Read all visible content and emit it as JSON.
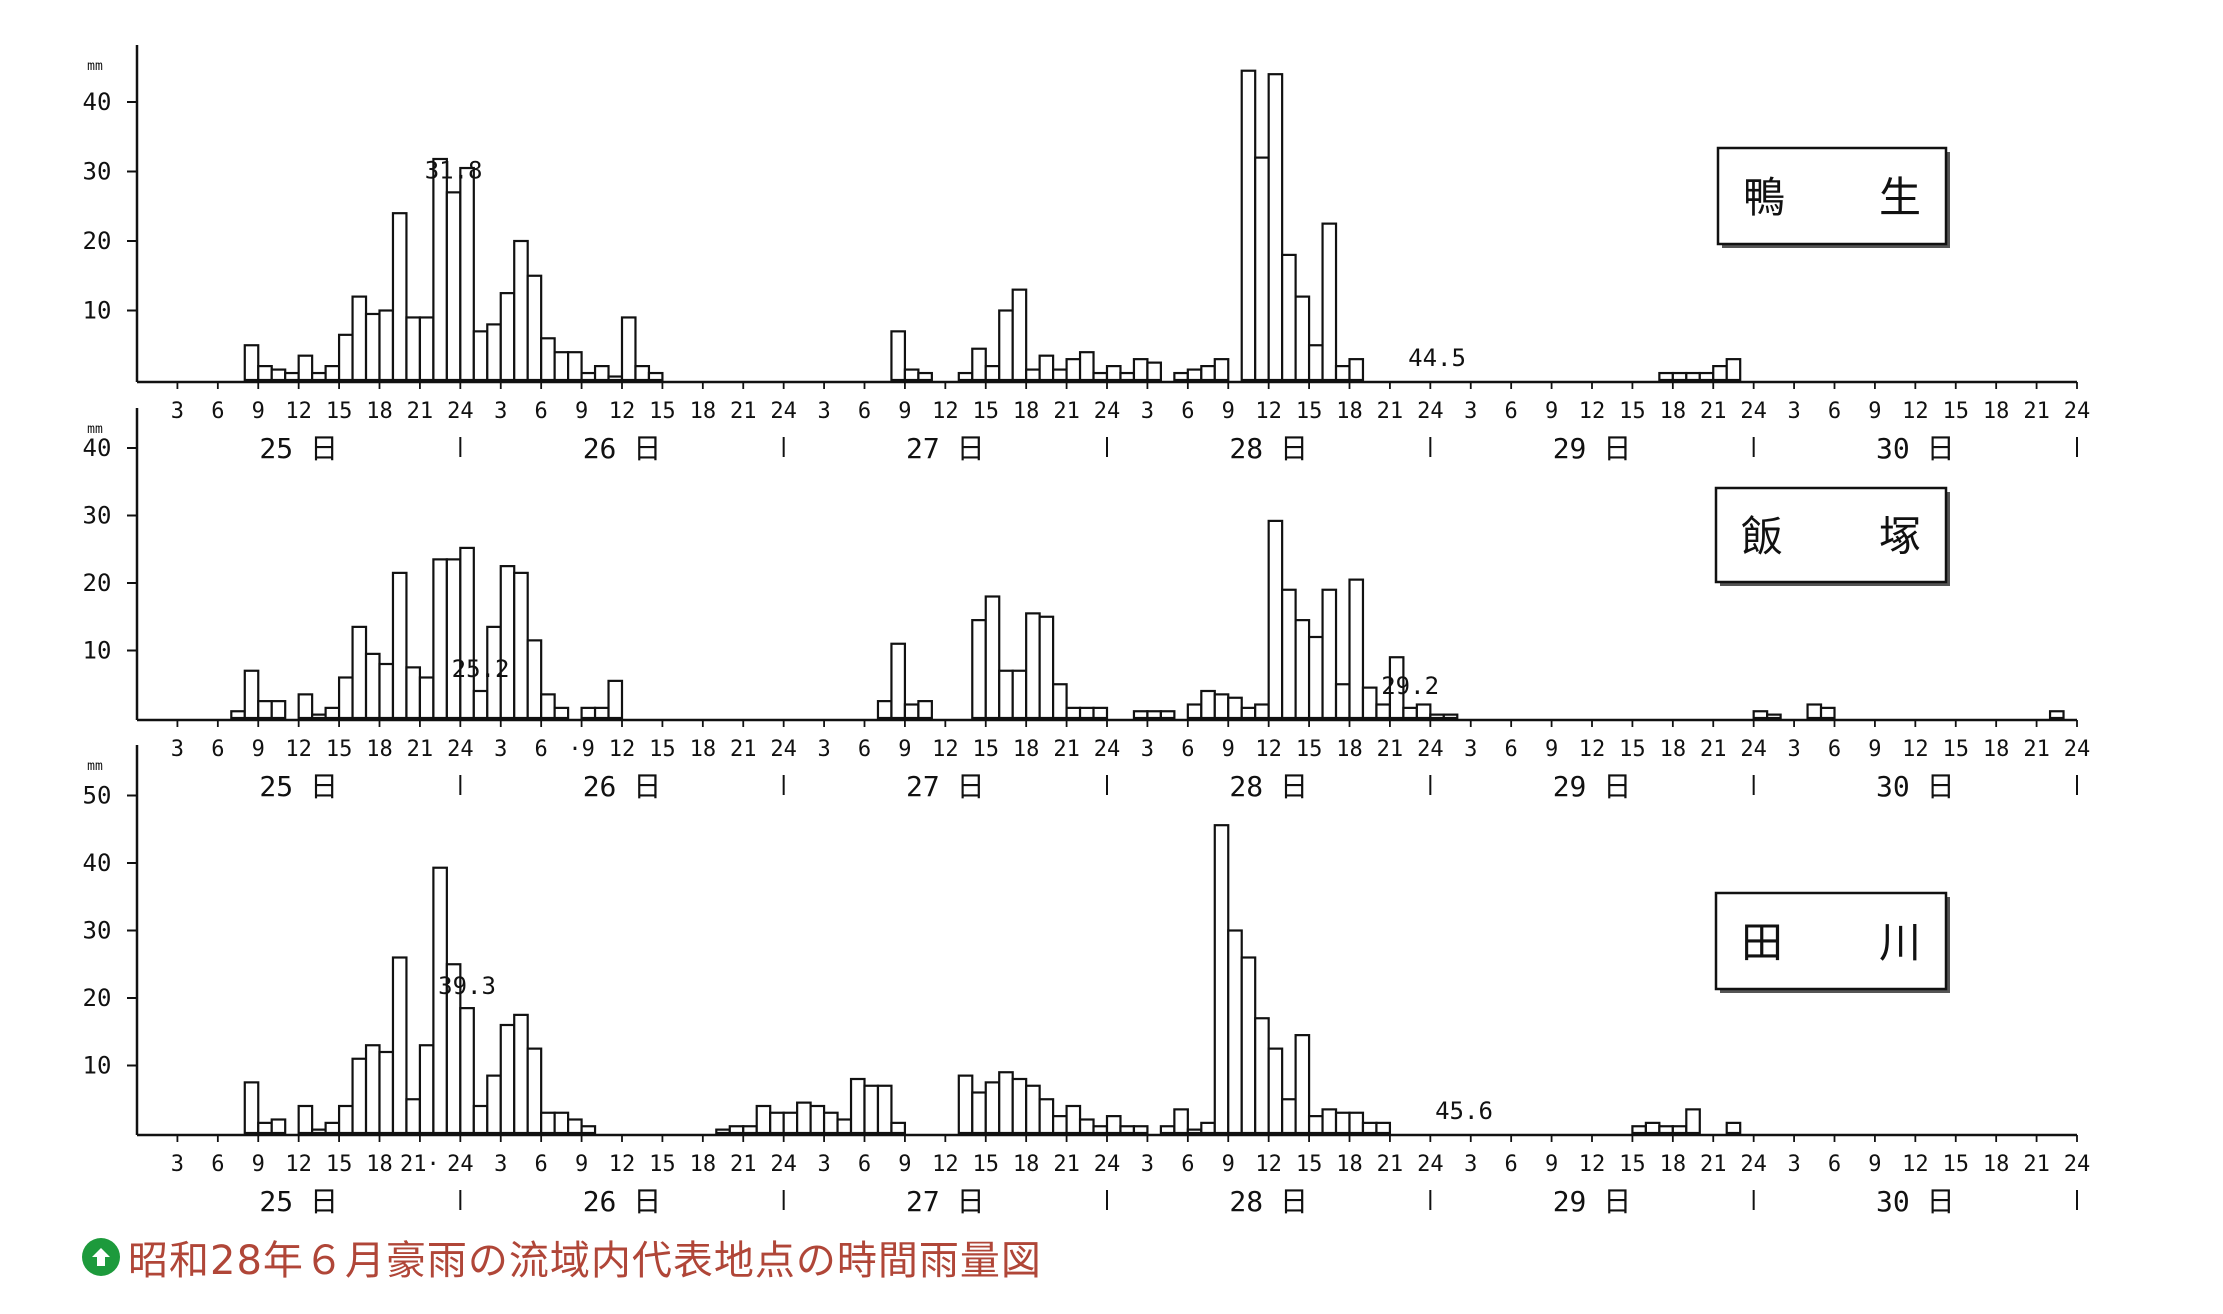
{
  "caption": {
    "text": "昭和28年６月豪雨の流域内代表地点の時間雨量図",
    "icon": "up-arrow-circle-icon",
    "icon_color": "#1d9a3c",
    "text_color": "#b04638"
  },
  "chart_data": [
    {
      "type": "bar",
      "station_label": "鴨 生",
      "yunit": "mm",
      "yticks": [
        10,
        20,
        30,
        40
      ],
      "ylim": [
        0,
        48
      ],
      "x_tick_labels": [
        "3",
        "6",
        "9",
        "12",
        "15",
        "18",
        "21",
        "24",
        "3",
        "6",
        "9",
        "12",
        "15",
        "18",
        "21",
        "24",
        "3",
        "6",
        "9",
        "12",
        "15",
        "18",
        "21",
        "24",
        "3",
        "6",
        "9",
        "12",
        "15",
        "18",
        "21",
        "24",
        "3",
        "6",
        "9",
        "12",
        "15",
        "18",
        "21",
        "24",
        "3",
        "6",
        "9",
        "12",
        "15",
        "18",
        "21",
        "24"
      ],
      "day_labels": [
        "25 日",
        "26 日",
        "27 日",
        "28 日",
        "29 日",
        "30 日"
      ],
      "peak_annotations": [
        {
          "hour": 23,
          "label": "31.8"
        },
        {
          "hour": 96,
          "label": "44.5"
        }
      ],
      "values": [
        0,
        0,
        0,
        0,
        0,
        0,
        0,
        0,
        5,
        2,
        1.5,
        1,
        3.5,
        1,
        2,
        6.5,
        12,
        9.5,
        10,
        24,
        9,
        9,
        31.8,
        27,
        30.5,
        7,
        8,
        12.5,
        20,
        15,
        6,
        4,
        4,
        1,
        2,
        0.5,
        9,
        2,
        1,
        0,
        0,
        0,
        0,
        0,
        0,
        0,
        0,
        0,
        0,
        0,
        0,
        0,
        0,
        0,
        0,
        0,
        7,
        1.5,
        1,
        0,
        0,
        1,
        4.5,
        2,
        10,
        13,
        1.5,
        3.5,
        1.5,
        3,
        4,
        1,
        2,
        1,
        3,
        2.5,
        0,
        1,
        1.5,
        2,
        3,
        0,
        44.5,
        32,
        44,
        18,
        12,
        5,
        22.5,
        2,
        3,
        0,
        0,
        0,
        0,
        0,
        0,
        0,
        0,
        0,
        0,
        0,
        0,
        0,
        0,
        0,
        0,
        0,
        0,
        0,
        0,
        0,
        0,
        1,
        1,
        1,
        1,
        2,
        3,
        0,
        0,
        0,
        0,
        0,
        0,
        0,
        0,
        0,
        0,
        0,
        0,
        0,
        0,
        0,
        0,
        0,
        0,
        0,
        0,
        0,
        0,
        0,
        0,
        0,
        0,
        0,
        0,
        0,
        0,
        0,
        0,
        0,
        0,
        0
      ]
    },
    {
      "type": "bar",
      "station_label": "飯 塚",
      "yunit": "mm",
      "yticks": [
        10,
        20,
        30,
        40
      ],
      "ylim": [
        0,
        48
      ],
      "x_tick_labels": [
        "3",
        "6",
        "9",
        "12",
        "15",
        "18",
        "21",
        "24",
        "3",
        "6",
        "·9",
        "12",
        "15",
        "18",
        "21",
        "24",
        "3",
        "6",
        "9",
        "12",
        "15",
        "18",
        "21",
        "24",
        "3",
        "6",
        "9",
        "12",
        "15",
        "18",
        "21",
        "24",
        "3",
        "6",
        "9",
        "12",
        "15",
        "18",
        "21",
        "24",
        "3",
        "6",
        "9",
        "12",
        "15",
        "18",
        "21",
        "24"
      ],
      "day_labels": [
        "25 日",
        "26 日",
        "27 日",
        "28 日",
        "29 日",
        "30 日"
      ],
      "peak_annotations": [
        {
          "hour": 25,
          "label": "25.2"
        },
        {
          "hour": 94,
          "label": "29.2"
        }
      ],
      "values": [
        0,
        0,
        0,
        0,
        0,
        0,
        0,
        1,
        7,
        2.5,
        2.5,
        0,
        3.5,
        0.5,
        1.5,
        6,
        13.5,
        9.5,
        8,
        21.5,
        7.5,
        6,
        23.5,
        23.5,
        25.2,
        4,
        13.5,
        22.5,
        21.5,
        11.5,
        3.5,
        1.5,
        0,
        1.5,
        1.5,
        5.5,
        0,
        0,
        0,
        0,
        0,
        0,
        0,
        0,
        0,
        0,
        0,
        0,
        0,
        0,
        0,
        0,
        0,
        0,
        0,
        2.5,
        11,
        2,
        2.5,
        0,
        0,
        0,
        14.5,
        18,
        7,
        7,
        15.5,
        15,
        5,
        1.5,
        1.5,
        1.5,
        0,
        0,
        1,
        1,
        1,
        0,
        2,
        4,
        3.5,
        3,
        1.5,
        2,
        29.2,
        19,
        14.5,
        12,
        19,
        5,
        20.5,
        4.5,
        2,
        9,
        1.5,
        2,
        0.5,
        0.5,
        0,
        0,
        0,
        0,
        0,
        0,
        0,
        0,
        0,
        0,
        0,
        0,
        0,
        0,
        0,
        0,
        0,
        0,
        0,
        0,
        0,
        0,
        1,
        0.5,
        0,
        0,
        2,
        1.5,
        0,
        0,
        0,
        0,
        0,
        0,
        0,
        0,
        0,
        0,
        0,
        0,
        0,
        0,
        0,
        0,
        1,
        0,
        0,
        0,
        0,
        0,
        0,
        0,
        0,
        0,
        0,
        0,
        0,
        0,
        0,
        0,
        0,
        0
      ]
    },
    {
      "type": "bar",
      "station_label": "田 川",
      "yunit": "mm",
      "yticks": [
        10,
        20,
        30,
        40,
        50
      ],
      "ylim": [
        0,
        52
      ],
      "x_tick_labels": [
        "3",
        "6",
        "9",
        "12",
        "15",
        "18",
        "21·",
        "24",
        "3",
        "6",
        "9",
        "12",
        "15",
        "18",
        "21",
        "24",
        "3",
        "6",
        "9",
        "12",
        "15",
        "18",
        "21",
        "24",
        "3",
        "6",
        "9",
        "12",
        "15",
        "18",
        "21",
        "24",
        "3",
        "6",
        "9",
        "12",
        "15",
        "18",
        "21",
        "24",
        "3",
        "6",
        "9",
        "12",
        "15",
        "18",
        "21",
        "24"
      ],
      "day_labels": [
        "25 日",
        "26 日",
        "27 日",
        "28 日",
        "29 日",
        "30 日"
      ],
      "peak_annotations": [
        {
          "hour": 24,
          "label": "39.3"
        },
        {
          "hour": 98,
          "label": "45.6"
        }
      ],
      "values": [
        0,
        0,
        0,
        0,
        0,
        0,
        0,
        0,
        7.5,
        1.5,
        2,
        0,
        4,
        0.5,
        1.5,
        4,
        11,
        13,
        12,
        26,
        5,
        13,
        39.3,
        25,
        18.5,
        4,
        8.5,
        16,
        17.5,
        12.5,
        3,
        3,
        2,
        1,
        0,
        0,
        0,
        0,
        0,
        0,
        0,
        0,
        0,
        0.5,
        1,
        1,
        4,
        3,
        3,
        4.5,
        4,
        3,
        2,
        8,
        7,
        7,
        1.5,
        0,
        0,
        0,
        0,
        8.5,
        6,
        7.5,
        9,
        8,
        7,
        5,
        2.5,
        4,
        2,
        1,
        2.5,
        1,
        1,
        0,
        1,
        3.5,
        0.5,
        1.5,
        45.6,
        30,
        26,
        17,
        12.5,
        5,
        14.5,
        2.5,
        3.5,
        3,
        3,
        1.5,
        1.5,
        0,
        0,
        0,
        0,
        0,
        0,
        0,
        0,
        0,
        0,
        0,
        0,
        0,
        0,
        0,
        0,
        0,
        0,
        1,
        1.5,
        1,
        1,
        3.5,
        0,
        0,
        1.5,
        0,
        0,
        0,
        0,
        0,
        0,
        0,
        0,
        0,
        0,
        0,
        0,
        0,
        0,
        0,
        0,
        0,
        0,
        0,
        0,
        0,
        0,
        0,
        0,
        0,
        0,
        0,
        0,
        0,
        0,
        0,
        0,
        0,
        0,
        0,
        0,
        0
      ]
    }
  ]
}
